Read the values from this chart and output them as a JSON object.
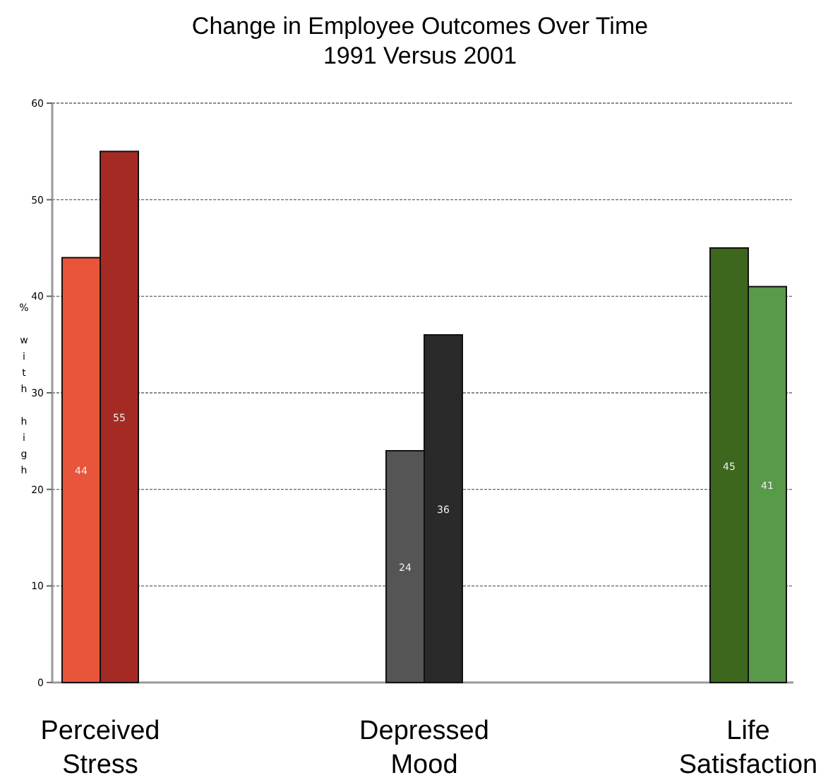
{
  "chart_data": {
    "type": "bar",
    "title": "Change in Employee Outcomes Over Time",
    "subtitle": "1991 Versus 2001",
    "ylabel": "% with high",
    "categories": [
      "Perceived Stress",
      "Depressed Mood",
      "Life Satisfaction"
    ],
    "series": [
      {
        "colors": [
          "#e8553a",
          "#555555",
          "#3d671d"
        ],
        "values": [
          44,
          24,
          45
        ]
      },
      {
        "colors": [
          "#a52a24",
          "#2a2a2a",
          "#58994a"
        ],
        "values": [
          55,
          36,
          41
        ]
      }
    ],
    "ylim": [
      0,
      60
    ],
    "yticks": [
      0,
      10,
      20,
      30,
      40,
      50,
      60
    ],
    "grid": "y",
    "data_labels": true
  }
}
